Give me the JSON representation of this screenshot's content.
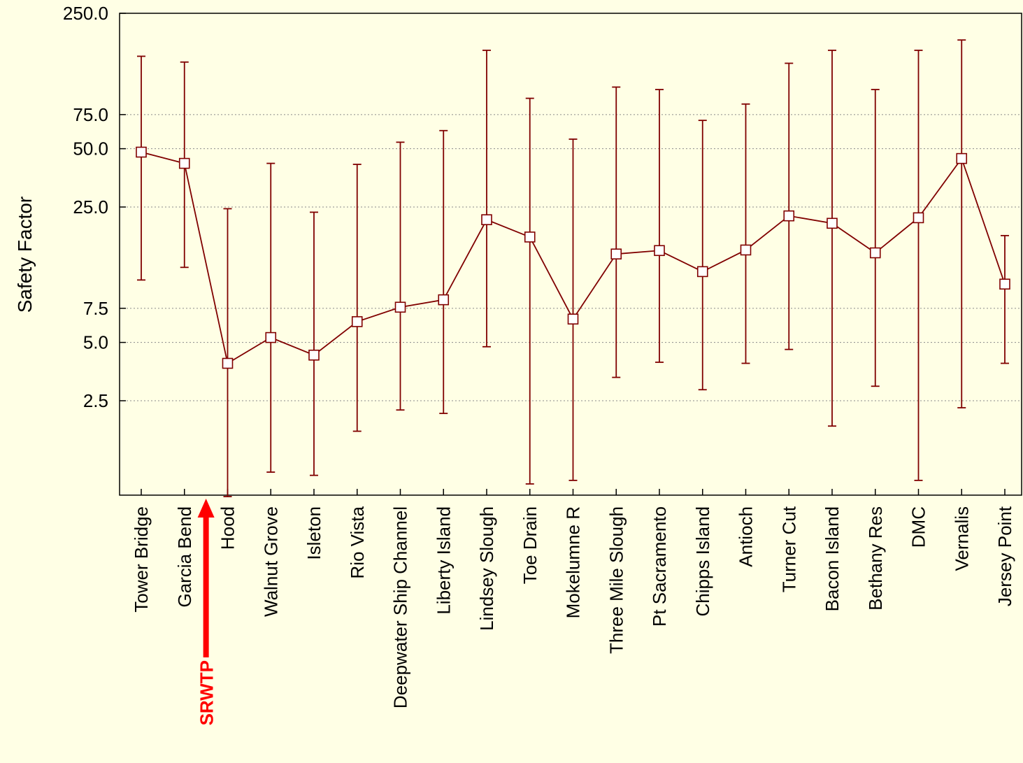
{
  "chart_data": {
    "type": "line",
    "ylabel": "Safety Factor",
    "xlabel": "",
    "yscale": "log",
    "yticks": [
      "250.0",
      "75.0",
      "50.0",
      "25.0",
      "7.5",
      "5.0",
      "2.5"
    ],
    "ytick_values": [
      250,
      75,
      50,
      25,
      7.5,
      5,
      2.5
    ],
    "ylim": [
      0.72,
      250
    ],
    "grid": true,
    "categories": [
      "Tower Bridge",
      "Garcia Bend",
      "Hood",
      "Walnut Grove",
      "Isleton",
      "Rio Vista",
      "Deepwater Ship Channel",
      "Liberty Island",
      "Lindsey Slough",
      "Toe Drain",
      "Mokelumne R",
      "Three Mile Slough",
      "Pt Sacramento",
      "Chipps Island",
      "Antioch",
      "Turner Cut",
      "Bacon Island",
      "Bethany Res",
      "DMC",
      "Vernalis",
      "Jersey Point"
    ],
    "series": [
      {
        "values": [
          48,
          42,
          3.9,
          5.3,
          4.3,
          6.4,
          7.6,
          8.3,
          21.5,
          17.5,
          6.6,
          14.3,
          14.9,
          11.6,
          15.0,
          22.5,
          20.6,
          14.5,
          22.0,
          44.5,
          10.0
        ],
        "upper": [
          150,
          140,
          24.5,
          42,
          23.5,
          41.5,
          54,
          62,
          161,
          91,
          56,
          104,
          101,
          70,
          85,
          138,
          161,
          101,
          161,
          182,
          17.8
        ],
        "lower": [
          10.5,
          12.2,
          0.8,
          1.07,
          1.03,
          1.74,
          2.24,
          2.15,
          4.75,
          0.93,
          0.97,
          3.3,
          3.95,
          2.85,
          3.9,
          4.6,
          1.85,
          2.97,
          0.97,
          2.3,
          3.9
        ]
      }
    ],
    "colors": {
      "series": "#800000",
      "background": "#FFFFE5",
      "annotation": "#FF0000"
    },
    "annotation": {
      "text": "SRWTP",
      "between": [
        "Garcia Bend",
        "Hood"
      ]
    }
  }
}
